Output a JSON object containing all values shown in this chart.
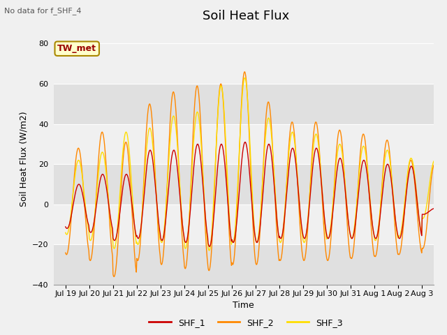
{
  "title": "Soil Heat Flux",
  "ylabel": "Soil Heat Flux (W/m2)",
  "xlabel": "Time",
  "note": "No data for f_SHF_4",
  "legend_label": "TW_met",
  "ylim": [
    -40,
    85
  ],
  "yticks": [
    -40,
    -20,
    0,
    20,
    40,
    60,
    80
  ],
  "bg_color": "#f0f0f0",
  "plot_bg_color": "#f0f0f0",
  "band_colors": [
    "#e0e0e0",
    "#f0f0f0"
  ],
  "series_colors": {
    "SHF_1": "#cc0000",
    "SHF_2": "#ff8800",
    "SHF_3": "#ffdd00"
  },
  "tick_labels": [
    "Jul 19",
    "Jul 20",
    "Jul 21",
    "Jul 22",
    "Jul 23",
    "Jul 24",
    "Jul 25",
    "Jul 26",
    "Jul 27",
    "Jul 28",
    "Jul 29",
    "Jul 30",
    "Jul 31",
    "Aug 1",
    "Aug 2",
    "Aug 3"
  ],
  "linewidth": 1.0,
  "title_fontsize": 13,
  "label_fontsize": 9,
  "tick_fontsize": 8
}
